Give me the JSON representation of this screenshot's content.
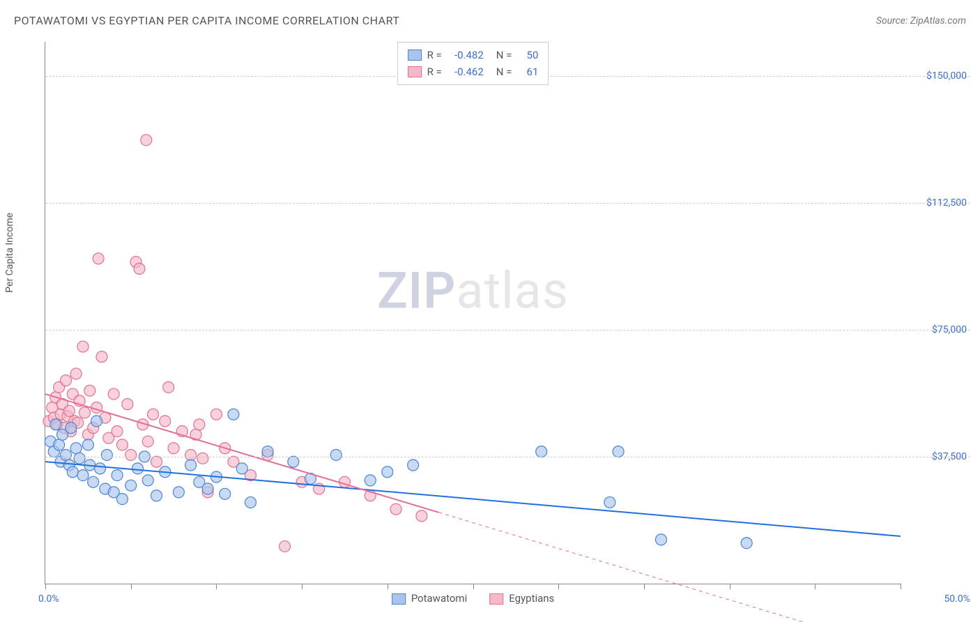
{
  "title": "POTAWATOMI VS EGYPTIAN PER CAPITA INCOME CORRELATION CHART",
  "source_label": "Source:",
  "source_name": "ZipAtlas.com",
  "y_axis_label": "Per Capita Income",
  "watermark_bold": "ZIP",
  "watermark_rest": "atlas",
  "chart": {
    "type": "scatter",
    "xlim": [
      0,
      50
    ],
    "ylim": [
      0,
      160000
    ],
    "x_ticks": [
      0,
      5,
      10,
      15,
      20,
      25,
      30,
      35,
      40,
      45,
      50
    ],
    "x_range_labels": {
      "min": "0.0%",
      "max": "50.0%"
    },
    "y_gridlines": [
      37500,
      75000,
      112500,
      150000
    ],
    "y_tick_labels": [
      "$37,500",
      "$75,000",
      "$112,500",
      "$150,000"
    ],
    "background_color": "#ffffff",
    "grid_color": "#cccccc",
    "axis_color": "#888888",
    "tick_label_color": "#3b6fc9",
    "series": [
      {
        "name": "Potawatomi",
        "marker_fill": "#a9c5ec",
        "marker_stroke": "#4a84d6",
        "marker_opacity": 0.65,
        "marker_radius": 8,
        "trend_color": "#1f6fe0",
        "trend_width": 2,
        "trend_solid_x_end": 50,
        "trend": {
          "y_at_x0": 36000,
          "y_at_xmax": 14000
        },
        "R": "-0.482",
        "N": "50",
        "points": [
          [
            0.3,
            42000
          ],
          [
            0.5,
            39000
          ],
          [
            0.6,
            47000
          ],
          [
            0.8,
            41000
          ],
          [
            0.9,
            36000
          ],
          [
            1.0,
            44000
          ],
          [
            1.2,
            38000
          ],
          [
            1.4,
            35000
          ],
          [
            1.5,
            46000
          ],
          [
            1.6,
            33000
          ],
          [
            1.8,
            40000
          ],
          [
            2.0,
            37000
          ],
          [
            2.2,
            32000
          ],
          [
            2.5,
            41000
          ],
          [
            2.6,
            35000
          ],
          [
            2.8,
            30000
          ],
          [
            3.0,
            48000
          ],
          [
            3.2,
            34000
          ],
          [
            3.5,
            28000
          ],
          [
            3.6,
            38000
          ],
          [
            4.0,
            27000
          ],
          [
            4.2,
            32000
          ],
          [
            4.5,
            25000
          ],
          [
            5.0,
            29000
          ],
          [
            5.4,
            34000
          ],
          [
            5.8,
            37500
          ],
          [
            6.0,
            30500
          ],
          [
            6.5,
            26000
          ],
          [
            7.0,
            33000
          ],
          [
            7.8,
            27000
          ],
          [
            8.5,
            35000
          ],
          [
            9.0,
            30000
          ],
          [
            9.5,
            28000
          ],
          [
            10.0,
            31500
          ],
          [
            10.5,
            26500
          ],
          [
            11.0,
            50000
          ],
          [
            11.5,
            34000
          ],
          [
            12.0,
            24000
          ],
          [
            13.0,
            39000
          ],
          [
            14.5,
            36000
          ],
          [
            15.5,
            31000
          ],
          [
            17.0,
            38000
          ],
          [
            19.0,
            30500
          ],
          [
            20.0,
            33000
          ],
          [
            21.5,
            35000
          ],
          [
            29.0,
            39000
          ],
          [
            33.0,
            24000
          ],
          [
            33.5,
            39000
          ],
          [
            36.0,
            13000
          ],
          [
            41.0,
            12000
          ]
        ]
      },
      {
        "name": "Egyptians",
        "marker_fill": "#f4b8c6",
        "marker_stroke": "#e36f93",
        "marker_opacity": 0.65,
        "marker_radius": 8,
        "trend_color": "#e36f93",
        "trend_width": 2,
        "trend_solid_x_end": 23,
        "trend": {
          "y_at_x0": 56000,
          "y_at_xmax": -20000
        },
        "R": "-0.462",
        "N": "61",
        "points": [
          [
            0.2,
            48000
          ],
          [
            0.4,
            52000
          ],
          [
            0.5,
            49000
          ],
          [
            0.6,
            55000
          ],
          [
            0.7,
            47000
          ],
          [
            0.8,
            58000
          ],
          [
            0.9,
            50000
          ],
          [
            1.0,
            53000
          ],
          [
            1.1,
            46000
          ],
          [
            1.2,
            60000
          ],
          [
            1.3,
            49500
          ],
          [
            1.4,
            51000
          ],
          [
            1.5,
            45000
          ],
          [
            1.6,
            56000
          ],
          [
            1.7,
            48000
          ],
          [
            1.8,
            62000
          ],
          [
            1.9,
            47500
          ],
          [
            2.0,
            54000
          ],
          [
            2.2,
            70000
          ],
          [
            2.3,
            50500
          ],
          [
            2.5,
            44000
          ],
          [
            2.6,
            57000
          ],
          [
            2.8,
            46000
          ],
          [
            3.0,
            52000
          ],
          [
            3.1,
            96000
          ],
          [
            3.3,
            67000
          ],
          [
            3.5,
            49000
          ],
          [
            3.7,
            43000
          ],
          [
            4.0,
            56000
          ],
          [
            4.2,
            45000
          ],
          [
            4.5,
            41000
          ],
          [
            4.8,
            53000
          ],
          [
            5.0,
            38000
          ],
          [
            5.3,
            95000
          ],
          [
            5.5,
            93000
          ],
          [
            5.7,
            47000
          ],
          [
            5.9,
            131000
          ],
          [
            6.0,
            42000
          ],
          [
            6.3,
            50000
          ],
          [
            6.5,
            36000
          ],
          [
            7.0,
            48000
          ],
          [
            7.2,
            58000
          ],
          [
            7.5,
            40000
          ],
          [
            8.0,
            45000
          ],
          [
            8.5,
            38000
          ],
          [
            8.8,
            44000
          ],
          [
            9.0,
            47000
          ],
          [
            9.2,
            37000
          ],
          [
            9.5,
            27000
          ],
          [
            10.0,
            50000
          ],
          [
            10.5,
            40000
          ],
          [
            11.0,
            36000
          ],
          [
            12.0,
            32000
          ],
          [
            13.0,
            38000
          ],
          [
            14.0,
            11000
          ],
          [
            15.0,
            30000
          ],
          [
            16.0,
            28000
          ],
          [
            17.5,
            30000
          ],
          [
            19.0,
            26000
          ],
          [
            20.5,
            22000
          ],
          [
            22.0,
            20000
          ]
        ]
      }
    ],
    "legend_top": {
      "R_label": "R =",
      "N_label": "N ="
    },
    "legend_bottom_labels": [
      "Potawatomi",
      "Egyptians"
    ]
  }
}
